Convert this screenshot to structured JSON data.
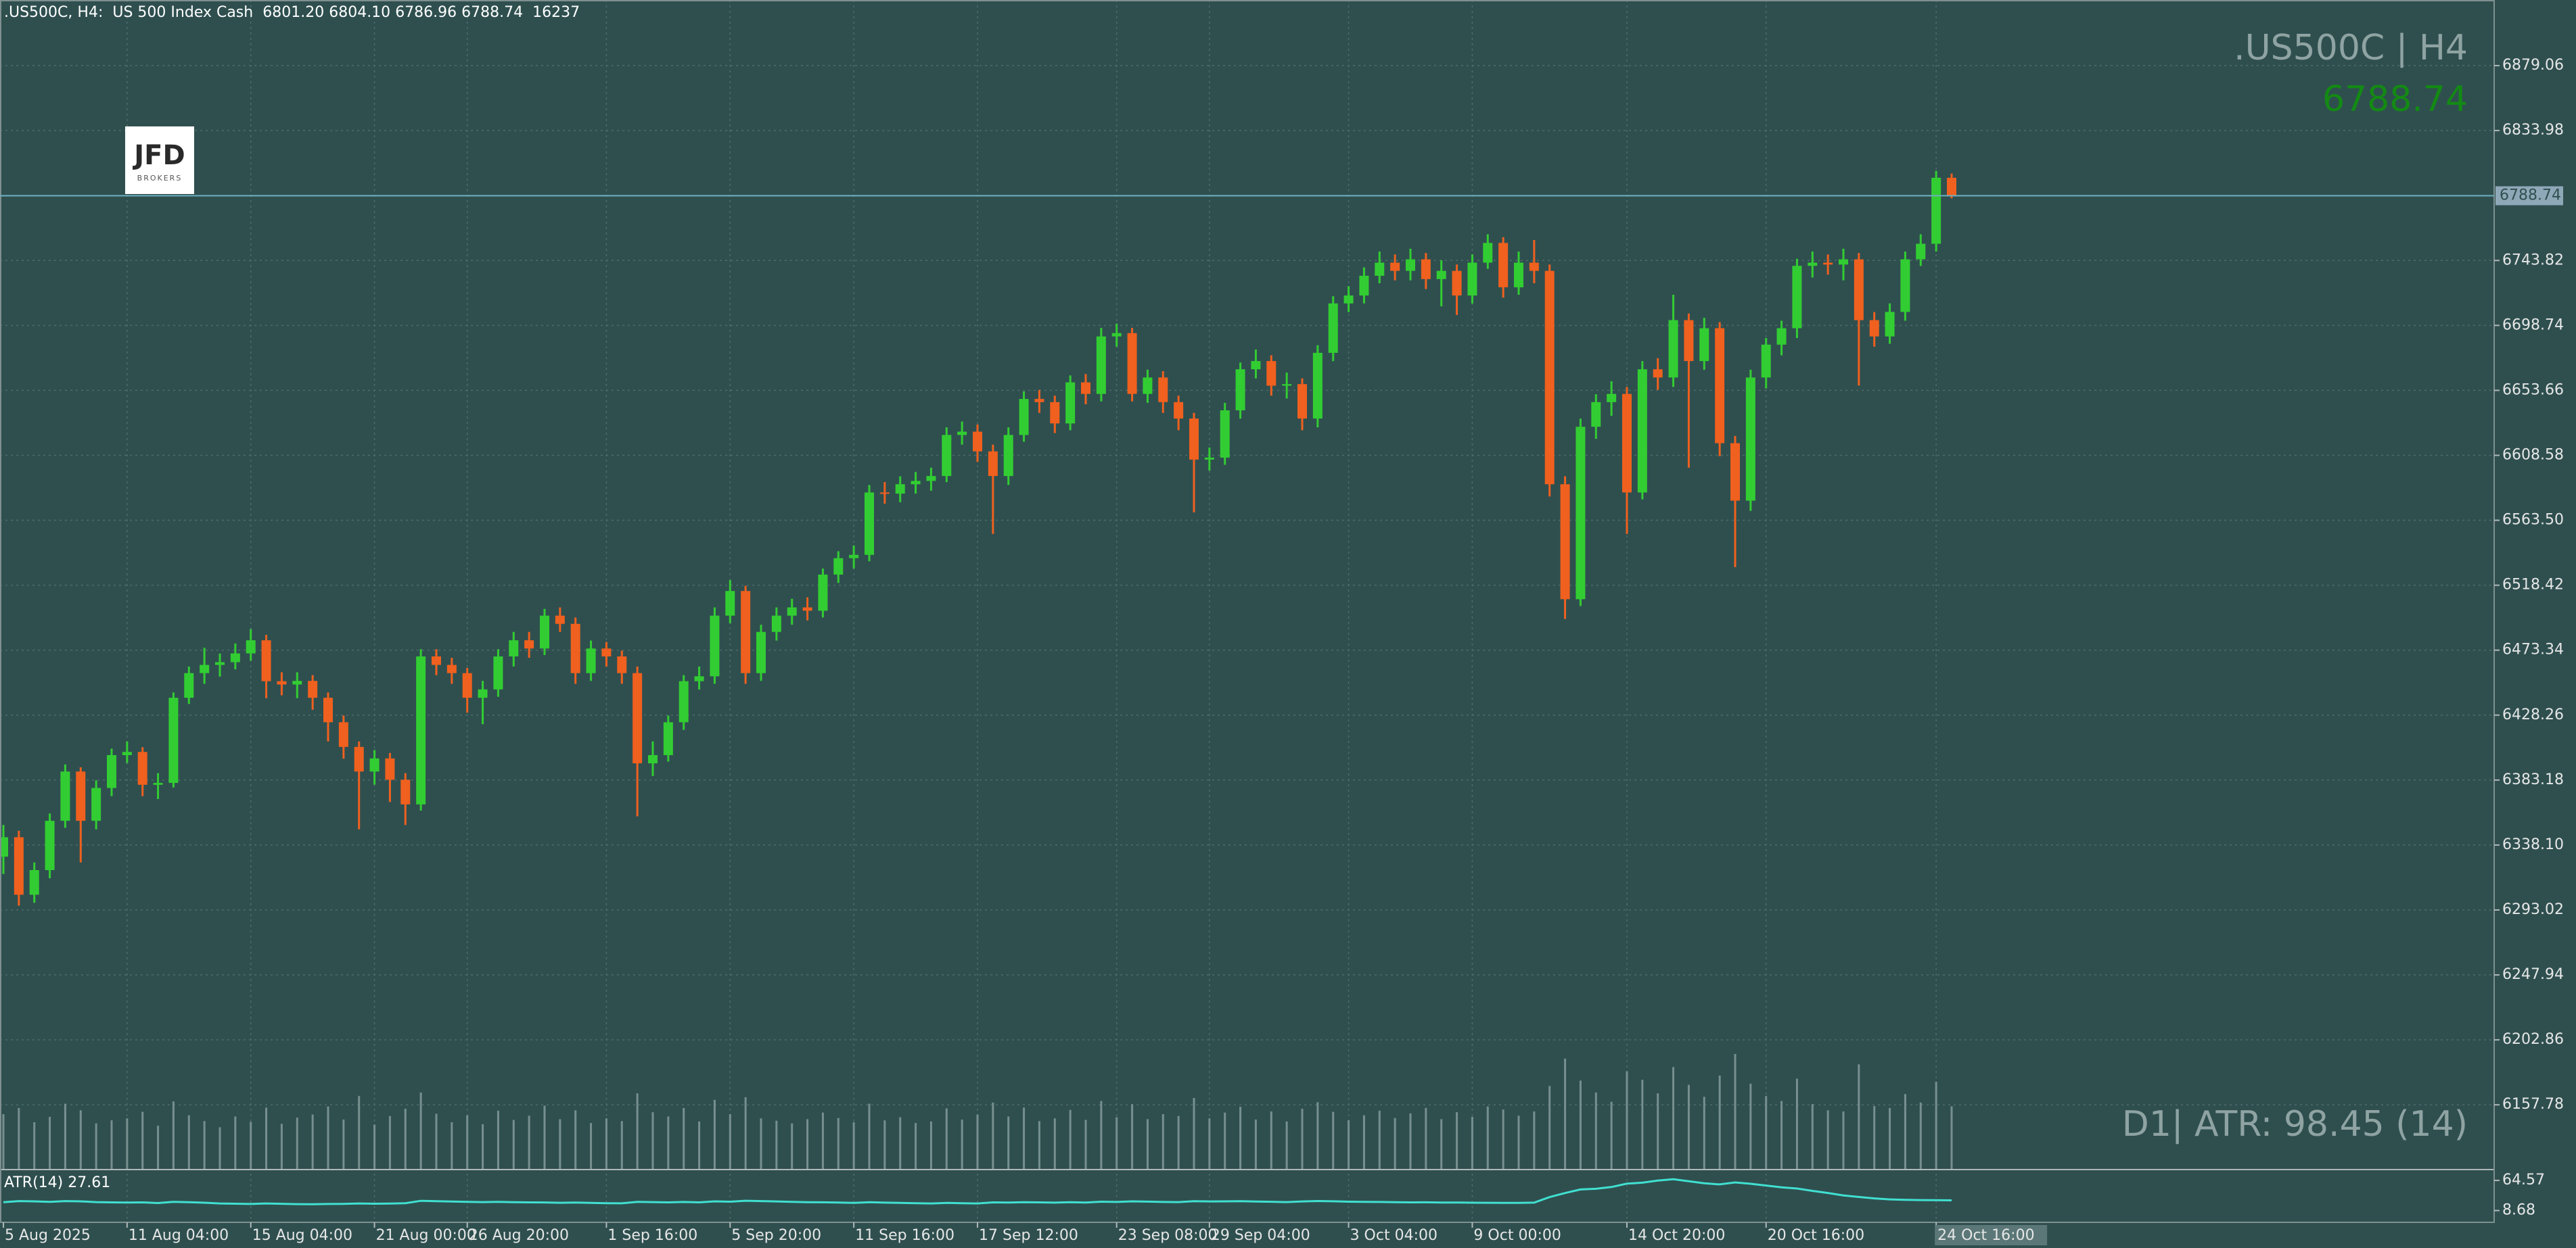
{
  "chart_data": {
    "type": "candlestick",
    "header": {
      "title": ".US500C, H4:",
      "description": "US 500 Index Cash",
      "open_label": "6801.20",
      "high_label": "6804.10"
    },
    "watermark": ".US500C | H4",
    "atr_note": "D1| ATR: 98.45 (14)",
    "logo": {
      "name": "JFD",
      "tagline": "BROKERS"
    },
    "up_color": "#32cd32",
    "down_color": "#f0601e",
    "volume_color": "#778f8f",
    "bid_color": "#6fb0c0",
    "grid": true,
    "categories": [
      "5 Aug 2025",
      null,
      null,
      null,
      null,
      null,
      null,
      null,
      "11 Aug 04:00",
      null,
      null,
      null,
      null,
      null,
      null,
      null,
      "15 Aug 04:00",
      null,
      null,
      null,
      null,
      null,
      null,
      null,
      "21 Aug 00:00",
      null,
      null,
      null,
      null,
      null,
      "26 Aug 20:00",
      null,
      null,
      null,
      null,
      null,
      null,
      null,
      null,
      "1 Sep 16:00",
      null,
      null,
      null,
      null,
      null,
      null,
      null,
      "5 Sep 20:00",
      null,
      null,
      null,
      null,
      null,
      null,
      null,
      "11 Sep 16:00",
      null,
      null,
      null,
      null,
      null,
      null,
      null,
      "17 Sep 12:00",
      null,
      null,
      null,
      null,
      null,
      null,
      null,
      null,
      "23 Sep 08:00",
      null,
      null,
      null,
      null,
      null,
      "29 Sep 04:00",
      null,
      null,
      null,
      null,
      null,
      null,
      null,
      null,
      "3 Oct 04:00",
      null,
      null,
      null,
      null,
      null,
      null,
      null,
      "9 Oct 00:00",
      null,
      null,
      null,
      null,
      null,
      null,
      null,
      null,
      null,
      "14 Oct 20:00",
      null,
      null,
      null,
      null,
      null,
      null,
      null,
      null,
      "20 Oct 16:00",
      null,
      null,
      null,
      null,
      null,
      null,
      null,
      null,
      null,
      null,
      "24 Oct 16:00",
      null
    ],
    "open": [
      6330,
      6343.5,
      6303.6,
      6320.7,
      6354.9,
      6389.1,
      6354.9,
      6377.7,
      6400.5,
      6402.7,
      6379.9,
      6381.2,
      6440.3,
      6457.4,
      6463.1,
      6465.0,
      6471.1,
      6480.2,
      6451.8,
      6449.5,
      6452.0,
      6440.3,
      6423.3,
      6406.2,
      6389.1,
      6398.2,
      6383.4,
      6366.3,
      6469.0,
      6463.1,
      6457.4,
      6440.3,
      6446.1,
      6469.0,
      6480.2,
      6474.5,
      6497.3,
      6491.6,
      6457.4,
      6474.5,
      6469.0,
      6457.4,
      6394.8,
      6400.5,
      6423.3,
      6451.8,
      6455.2,
      6497.3,
      6514.4,
      6457.4,
      6486.0,
      6497.3,
      6503.0,
      6500.7,
      6525.8,
      6537.2,
      6539.5,
      6582.8,
      6582.0,
      6588.5,
      6590.8,
      6594.2,
      6622.7,
      6625.0,
      6611.3,
      6594.2,
      6622.7,
      6647.7,
      6645.5,
      6630.7,
      6659.2,
      6651.2,
      6691.1,
      6693.4,
      6651.2,
      6662.6,
      6645.5,
      6634.1,
      6605.6,
      6607.0,
      6639.8,
      6668.3,
      6674.0,
      6656.9,
      6658.0,
      6634.1,
      6679.7,
      6714.0,
      6719.5,
      6733.2,
      6742.3,
      6736.6,
      6744.6,
      6730.9,
      6736.6,
      6719.5,
      6742.3,
      6756.0,
      6725.2,
      6742.3,
      6736.6,
      6588.5,
      6508.7,
      6628.4,
      6645.5,
      6651.2,
      6582.8,
      6668.3,
      6662.6,
      6702.4,
      6674.0,
      6696.8,
      6617.0,
      6577.1,
      6662.6,
      6685.4,
      6696.8,
      6740.1,
      6742.3,
      6741.0,
      6744.6,
      6702.4,
      6691.1,
      6708.1,
      6744.6,
      6755.4,
      6801.2
    ],
    "high": [
      6352,
      6348,
      6326,
      6360,
      6394,
      6392,
      6383,
      6405,
      6410,
      6406,
      6388,
      6444,
      6462,
      6475,
      6471,
      6478,
      6488,
      6484,
      6458,
      6458,
      6456,
      6444,
      6428,
      6410,
      6404,
      6402,
      6388,
      6474,
      6474,
      6468,
      6461,
      6452,
      6474,
      6486,
      6486,
      6502,
      6503,
      6496,
      6480,
      6479,
      6473,
      6462,
      6410,
      6428,
      6456,
      6462,
      6503,
      6522,
      6518,
      6491,
      6503,
      6509,
      6510,
      6530,
      6542,
      6546,
      6588,
      6590,
      6594,
      6597,
      6600,
      6628,
      6632,
      6630,
      6616,
      6628,
      6653,
      6654,
      6650,
      6664,
      6665,
      6697,
      6700,
      6697,
      6668,
      6667,
      6650,
      6638,
      6614,
      6645,
      6673,
      6682,
      6678,
      6666,
      6662,
      6685,
      6719,
      6726,
      6739,
      6750,
      6748,
      6752,
      6749,
      6744,
      6741,
      6748,
      6762,
      6760,
      6750,
      6758,
      6741,
      6594,
      6634,
      6651,
      6660,
      6656,
      6674,
      6676,
      6720,
      6707,
      6704,
      6701,
      6622,
      6668,
      6690,
      6702,
      6745,
      6750,
      6748,
      6752,
      6749,
      6708,
      6714,
      6750,
      6762,
      6806,
      6804.1
    ],
    "low": [
      6318,
      6296,
      6298,
      6315,
      6350,
      6326,
      6349,
      6372,
      6395,
      6372,
      6370,
      6378,
      6436,
      6450,
      6455,
      6460,
      6466,
      6440,
      6442,
      6440,
      6432,
      6410,
      6398,
      6349,
      6380,
      6368,
      6352,
      6362,
      6456,
      6450,
      6430,
      6422,
      6441,
      6462,
      6468,
      6470,
      6486,
      6450,
      6452,
      6462,
      6450,
      6358,
      6386,
      6396,
      6418,
      6446,
      6450,
      6492,
      6450,
      6452,
      6480,
      6491,
      6494,
      6496,
      6520,
      6530,
      6535,
      6575,
      6576,
      6582,
      6584,
      6590,
      6616,
      6604,
      6554,
      6588,
      6618,
      6638,
      6624,
      6626,
      6644,
      6646,
      6684,
      6646,
      6645,
      6638,
      6626,
      6569,
      6598,
      6602,
      6634,
      6662,
      6650,
      6648,
      6626,
      6628,
      6674,
      6708,
      6714,
      6728,
      6730,
      6730,
      6724,
      6712,
      6706,
      6714,
      6738,
      6718,
      6720,
      6728,
      6580,
      6495,
      6504,
      6620,
      6636,
      6554,
      6578,
      6654,
      6656,
      6600,
      6668,
      6608,
      6531,
      6570,
      6655,
      6678,
      6690,
      6732,
      6734,
      6730,
      6657,
      6684,
      6686,
      6702,
      6740,
      6750,
      6786.96
    ],
    "close": [
      6343.5,
      6303.6,
      6320.7,
      6354.9,
      6389.1,
      6354.9,
      6377.7,
      6400.5,
      6402.7,
      6379.9,
      6381.2,
      6440.3,
      6457.4,
      6463.1,
      6465.0,
      6471.1,
      6480.2,
      6451.8,
      6449.5,
      6452.0,
      6440.3,
      6423.3,
      6406.2,
      6389.1,
      6398.2,
      6383.4,
      6366.3,
      6469.0,
      6463.1,
      6457.4,
      6440.3,
      6446.1,
      6469.0,
      6480.2,
      6474.5,
      6497.3,
      6491.6,
      6457.4,
      6474.5,
      6469.0,
      6457.4,
      6394.8,
      6400.5,
      6423.3,
      6451.8,
      6455.2,
      6497.3,
      6514.4,
      6457.4,
      6486.0,
      6497.3,
      6503.0,
      6500.7,
      6525.8,
      6537.2,
      6539.5,
      6582.8,
      6582.0,
      6588.5,
      6590.8,
      6594.2,
      6622.7,
      6625.0,
      6611.3,
      6594.2,
      6622.7,
      6647.7,
      6645.5,
      6630.7,
      6659.2,
      6651.2,
      6691.1,
      6693.4,
      6651.2,
      6662.6,
      6645.5,
      6634.1,
      6605.6,
      6607.0,
      6639.8,
      6668.3,
      6674.0,
      6656.9,
      6658.0,
      6634.1,
      6679.7,
      6714.0,
      6719.5,
      6733.2,
      6742.3,
      6736.6,
      6744.6,
      6730.9,
      6736.6,
      6719.5,
      6742.3,
      6756.0,
      6725.2,
      6742.3,
      6736.6,
      6588.5,
      6508.7,
      6628.4,
      6645.5,
      6651.2,
      6582.8,
      6668.3,
      6662.6,
      6702.4,
      6674.0,
      6696.8,
      6617.0,
      6577.1,
      6662.6,
      6685.4,
      6696.8,
      6740.1,
      6742.3,
      6741.0,
      6744.6,
      6702.4,
      6691.1,
      6708.1,
      6744.6,
      6755.4,
      6801.2,
      6788.74
    ],
    "volume": [
      14200,
      15800,
      12100,
      13500,
      16900,
      15200,
      11800,
      12600,
      13100,
      14800,
      11200,
      17500,
      13900,
      12400,
      10800,
      13600,
      12200,
      15900,
      11700,
      13300,
      14100,
      16200,
      12800,
      18900,
      11500,
      13700,
      15600,
      19800,
      14300,
      12100,
      13900,
      11600,
      15100,
      12700,
      13800,
      16400,
      12900,
      15200,
      11900,
      13100,
      12400,
      19600,
      14700,
      13600,
      15800,
      12300,
      17900,
      14200,
      18600,
      13100,
      12500,
      11800,
      12900,
      14600,
      13200,
      12100,
      16900,
      12600,
      13400,
      11900,
      12300,
      15700,
      12800,
      14100,
      17200,
      13600,
      15900,
      12400,
      13100,
      15300,
      12700,
      17600,
      13400,
      16800,
      12900,
      14200,
      13700,
      18400,
      13100,
      14600,
      16100,
      12800,
      14900,
      12300,
      15600,
      17300,
      14800,
      12600,
      13900,
      15100,
      13200,
      14400,
      15800,
      12900,
      14700,
      13500,
      16200,
      15400,
      13800,
      14900,
      21500,
      28600,
      22900,
      19800,
      17400,
      25300,
      23100,
      19600,
      26400,
      21800,
      18700,
      24200,
      29800,
      22100,
      18900,
      17600,
      23400,
      16800,
      15200,
      14900,
      27100,
      16300,
      15800,
      19400,
      17200,
      22600,
      16237
    ],
    "ylim": [
      6113.3,
      6924.6
    ],
    "yticks": [
      6879.06,
      6833.98,
      6743.82,
      6698.74,
      6653.66,
      6608.58,
      {
        "value": 6563.5,
        "label": "6563.50"
      },
      6518.42,
      6473.34,
      6428.26,
      6383.18,
      {
        "value": 6338.1,
        "label": "6338.10"
      },
      6293.02,
      6247.94,
      6202.86,
      6157.78
    ],
    "indicator": {
      "name": "ATR(14)",
      "color": "#40e0d0",
      "ylim": [
        -11.9,
        82.2
      ],
      "yticks": [
        64.57,
        8.68
      ],
      "values": [
        24.1,
        26.3,
        25.8,
        24.9,
        26.2,
        25.7,
        24.3,
        23.8,
        23.5,
        23.9,
        22.6,
        24.8,
        24.1,
        23.2,
        21.9,
        21.4,
        20.8,
        21.9,
        21.2,
        20.6,
        20.3,
        20.8,
        21.1,
        21.9,
        21.4,
        21.6,
        22.3,
        26.8,
        26.1,
        25.4,
        24.7,
        24.3,
        24.8,
        24.2,
        23.9,
        23.7,
        23.1,
        23.6,
        22.8,
        22.4,
        22.1,
        24.9,
        24.3,
        23.8,
        24.6,
        23.9,
        25.8,
        25.1,
        26.9,
        26.2,
        25.6,
        24.8,
        24.1,
        24.0,
        23.5,
        22.8,
        24.1,
        23.4,
        22.9,
        22.3,
        21.8,
        22.9,
        22.4,
        21.8,
        23.9,
        23.6,
        24.2,
        23.9,
        23.4,
        24.1,
        23.6,
        25.1,
        24.6,
        25.7,
        25.2,
        24.6,
        24.3,
        26.1,
        25.6,
        25.8,
        26.1,
        25.4,
        25.0,
        24.4,
        25.6,
        26.4,
        25.9,
        25.1,
        24.8,
        24.6,
        24.1,
        23.8,
        24.0,
        23.5,
        23.6,
        23.2,
        23.1,
        22.9,
        22.8,
        23.4,
        33.6,
        41.2,
        47.8,
        49.1,
        52.3,
        58.6,
        60.4,
        64.2,
        66.8,
        63.1,
        59.4,
        57.2,
        60.9,
        58.3,
        55.1,
        51.8,
        49.6,
        45.2,
        41.3,
        36.8,
        33.9,
        31.2,
        29.4,
        28.6,
        28.1,
        27.9,
        27.61
      ]
    }
  }
}
